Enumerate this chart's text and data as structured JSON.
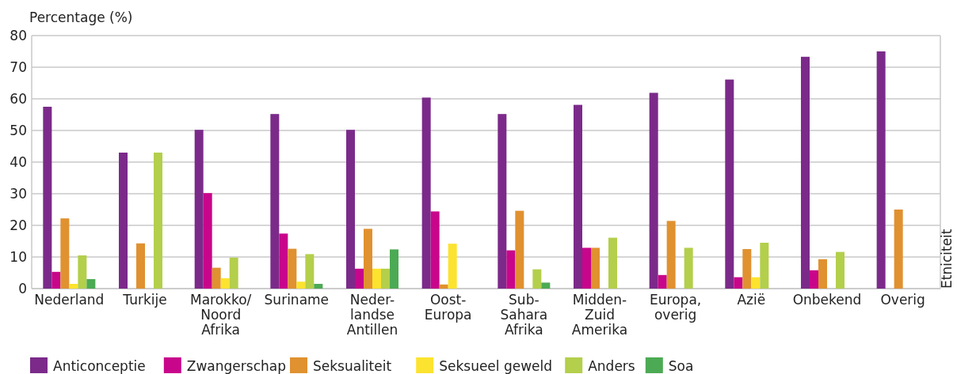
{
  "chart_data": {
    "type": "bar",
    "ylabel": "Percentage (%)",
    "annotations": [
      "Etniciteit"
    ],
    "categories": [
      "Nederland",
      "Turkije",
      "Marokko/ Noord Afrika",
      "Suriname",
      "Neder- landse Antillen",
      "Oost- Europa",
      "Sub- Sahara Afrika",
      "Midden- Zuid Amerika",
      "Europa, overig",
      "Azië",
      "Onbekend",
      "Overig"
    ],
    "series": [
      {
        "name": "Anticonceptie",
        "color": "#7b2a8a",
        "values": [
          57.5,
          43,
          50.2,
          55.2,
          50.2,
          60.4,
          55.2,
          58.1,
          61.9,
          66.1,
          73.3,
          75.0
        ]
      },
      {
        "name": "Zwangerschap",
        "color": "#c8068b",
        "values": [
          5.3,
          null,
          30.2,
          17.4,
          6.3,
          24.4,
          12.1,
          12.9,
          4.3,
          3.6,
          5.8,
          null
        ]
      },
      {
        "name": "Seksualiteit",
        "color": "#e09130",
        "values": [
          22.2,
          14.3,
          6.6,
          12.6,
          18.9,
          1.3,
          24.6,
          12.9,
          21.4,
          12.5,
          9.3,
          25.0
        ]
      },
      {
        "name": "Seksueel geweld",
        "color": "#fce32f",
        "values": [
          1.5,
          null,
          3.3,
          2.2,
          6.3,
          14.2,
          null,
          null,
          null,
          3.6,
          null,
          null
        ]
      },
      {
        "name": "Anders",
        "color": "#b3cf4b",
        "values": [
          10.5,
          43,
          9.8,
          10.9,
          6.3,
          null,
          6.1,
          16.1,
          12.9,
          14.5,
          11.6,
          null
        ]
      },
      {
        "name": "Soa",
        "color": "#4caa54",
        "values": [
          3.0,
          null,
          null,
          1.5,
          12.4,
          null,
          1.9,
          null,
          null,
          null,
          null,
          null
        ]
      }
    ],
    "ylim": [
      0,
      80
    ],
    "yticks": [
      0,
      10,
      20,
      30,
      40,
      50,
      60,
      70,
      80
    ],
    "grid": "y",
    "legend": "bottom"
  }
}
